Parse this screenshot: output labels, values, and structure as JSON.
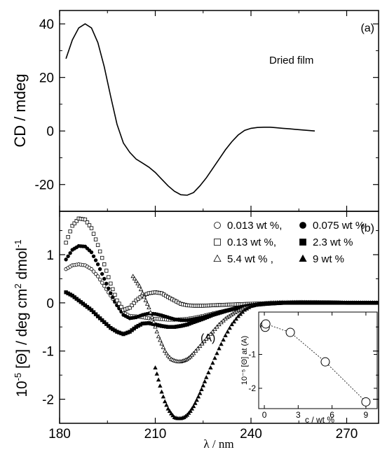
{
  "chart_data": [
    {
      "panel": "(a)",
      "type": "line",
      "annotation": "Dried film",
      "xlabel": "",
      "ylabel": "CD / mdeg",
      "xlim": [
        180,
        280
      ],
      "ylim": [
        -30,
        45
      ],
      "yticks": [
        -20,
        0,
        20,
        40
      ],
      "ytick_labels": [
        "-20",
        "0",
        "20",
        "40"
      ],
      "series": [
        {
          "x": [
            182,
            184,
            186,
            188,
            190,
            192,
            194,
            196,
            198,
            200,
            202,
            204,
            206,
            208,
            210,
            212,
            214,
            216,
            218,
            220,
            222,
            224,
            226,
            228,
            230,
            232,
            234,
            236,
            238,
            240,
            242,
            244,
            246,
            248,
            250,
            252,
            254,
            256,
            258,
            260
          ],
          "y": [
            27,
            34,
            38.5,
            40,
            38.5,
            33,
            24,
            13,
            2.5,
            -4.5,
            -8,
            -10.5,
            -12,
            -13.5,
            -15.5,
            -18,
            -20.5,
            -22.5,
            -23.8,
            -24,
            -23,
            -20.5,
            -17.5,
            -14,
            -10.5,
            -7,
            -4,
            -1.5,
            0.2,
            1,
            1.3,
            1.4,
            1.4,
            1.2,
            1,
            0.8,
            0.6,
            0.4,
            0.2,
            0
          ]
        }
      ]
    },
    {
      "panel": "(b)",
      "type": "scatter",
      "xlabel": "λ / nm",
      "ylabel_prefix": "10",
      "ylabel_exp1": "-5",
      "ylabel_mid": " [Θ] / deg cm",
      "ylabel_exp2": "2",
      "ylabel_mid2": " dmol",
      "ylabel_exp3": "-1",
      "xlim": [
        180,
        280
      ],
      "ylim": [
        -2.5,
        1.9
      ],
      "xticks": [
        180,
        210,
        240,
        270
      ],
      "xtick_labels": [
        "180",
        "210",
        "240",
        "270"
      ],
      "yticks": [
        -2,
        -1,
        0,
        1
      ],
      "ytick_labels": [
        "-2",
        "-1",
        "0",
        "1"
      ],
      "annotation": "(A)",
      "series": [
        {
          "name": "0.013 wt %,",
          "marker": "open-circle",
          "x": [
            182,
            184,
            186,
            188,
            190,
            192,
            194,
            196,
            198,
            200,
            202,
            204,
            206,
            208,
            210,
            212,
            214,
            216,
            218,
            220,
            222,
            225,
            228,
            232,
            236,
            240,
            245,
            250,
            255,
            260,
            265,
            270,
            275,
            280
          ],
          "y": [
            0.7,
            0.78,
            0.8,
            0.78,
            0.7,
            0.55,
            0.35,
            0.15,
            -0.05,
            -0.2,
            -0.27,
            -0.28,
            -0.3,
            -0.32,
            -0.33,
            -0.34,
            -0.35,
            -0.35,
            -0.34,
            -0.33,
            -0.31,
            -0.27,
            -0.22,
            -0.16,
            -0.1,
            -0.05,
            -0.02,
            0,
            0.01,
            0.01,
            0.01,
            0,
            0,
            0
          ]
        },
        {
          "name": "0.075 wt %",
          "marker": "filled-circle",
          "x": [
            182,
            184,
            186,
            188,
            190,
            192,
            194,
            196,
            198,
            200,
            202,
            204,
            206,
            208,
            210,
            212,
            214,
            216,
            218,
            220,
            222,
            225,
            228,
            232,
            236,
            240,
            245,
            250,
            255,
            260,
            265,
            270,
            275,
            280
          ],
          "y": [
            0.9,
            1.1,
            1.18,
            1.17,
            1.05,
            0.8,
            0.5,
            0.2,
            -0.05,
            -0.25,
            -0.32,
            -0.3,
            -0.25,
            -0.22,
            -0.23,
            -0.26,
            -0.3,
            -0.34,
            -0.36,
            -0.36,
            -0.34,
            -0.3,
            -0.24,
            -0.17,
            -0.1,
            -0.05,
            -0.02,
            0,
            0.01,
            0.01,
            0.01,
            0,
            0,
            0
          ]
        },
        {
          "name": "0.13 wt %,",
          "marker": "open-square",
          "x": [
            182,
            184,
            186,
            188,
            190,
            192,
            194,
            196,
            198,
            200,
            202,
            204,
            206,
            208,
            210,
            212,
            214,
            216,
            218,
            220,
            222,
            225,
            228,
            232,
            236,
            240,
            245,
            250,
            255,
            260,
            265,
            270,
            275,
            280
          ],
          "y": [
            1.25,
            1.6,
            1.75,
            1.73,
            1.55,
            1.2,
            0.8,
            0.4,
            0.05,
            -0.15,
            -0.1,
            0.05,
            0.15,
            0.2,
            0.22,
            0.2,
            0.12,
            0.05,
            -0.02,
            -0.05,
            -0.06,
            -0.06,
            -0.05,
            -0.04,
            -0.03,
            -0.02,
            -0.01,
            0,
            0,
            0,
            0,
            0,
            0,
            0
          ]
        },
        {
          "name": "2.3 wt %",
          "marker": "filled-square",
          "x": [
            182,
            184,
            186,
            188,
            190,
            192,
            194,
            196,
            198,
            200,
            202,
            204,
            206,
            208,
            210,
            212,
            214,
            216,
            218,
            220,
            222,
            225,
            228,
            232,
            236,
            240,
            245,
            250,
            255,
            260,
            265,
            270,
            275,
            280
          ],
          "y": [
            0.22,
            0.15,
            0.05,
            -0.05,
            -0.15,
            -0.28,
            -0.4,
            -0.52,
            -0.6,
            -0.65,
            -0.6,
            -0.5,
            -0.43,
            -0.42,
            -0.45,
            -0.48,
            -0.5,
            -0.5,
            -0.48,
            -0.45,
            -0.4,
            -0.33,
            -0.25,
            -0.17,
            -0.1,
            -0.05,
            -0.02,
            0,
            0.01,
            0.01,
            0.01,
            0,
            0,
            0
          ]
        },
        {
          "name": "5.4 wt %    ,",
          "marker": "open-triangle",
          "x": [
            203,
            204,
            205,
            206,
            207,
            208,
            209,
            210,
            211,
            212,
            213,
            214,
            215,
            216,
            217,
            218,
            219,
            220,
            221,
            222,
            224,
            226,
            228,
            230,
            232,
            235,
            238,
            242,
            246,
            250,
            255,
            260,
            265,
            270,
            275,
            280
          ],
          "y": [
            0.55,
            0.45,
            0.35,
            0.2,
            0.05,
            -0.1,
            -0.3,
            -0.5,
            -0.7,
            -0.85,
            -1.0,
            -1.1,
            -1.17,
            -1.2,
            -1.22,
            -1.22,
            -1.2,
            -1.17,
            -1.12,
            -1.05,
            -0.9,
            -0.75,
            -0.6,
            -0.45,
            -0.33,
            -0.2,
            -0.1,
            -0.04,
            -0.01,
            0,
            0.01,
            0.01,
            0,
            0,
            0,
            0
          ]
        },
        {
          "name": "9 wt %",
          "marker": "filled-triangle",
          "x": [
            210,
            211,
            212,
            213,
            214,
            215,
            216,
            217,
            218,
            219,
            220,
            221,
            222,
            223,
            224,
            225,
            226,
            228,
            230,
            232,
            234,
            236,
            238,
            240,
            243,
            246,
            250,
            255,
            260,
            265,
            270,
            275,
            280
          ],
          "y": [
            -1.35,
            -1.6,
            -1.85,
            -2.05,
            -2.2,
            -2.3,
            -2.38,
            -2.4,
            -2.4,
            -2.38,
            -2.33,
            -2.25,
            -2.15,
            -2.02,
            -1.88,
            -1.72,
            -1.55,
            -1.25,
            -0.95,
            -0.68,
            -0.45,
            -0.28,
            -0.15,
            -0.07,
            -0.02,
            0,
            0.01,
            0.01,
            0,
            0,
            0,
            0,
            0
          ]
        }
      ]
    },
    {
      "panel": "inset",
      "type": "line",
      "xlabel": "c / wt %",
      "ylabel": "10⁻⁵ [Θ] at (A)",
      "xlim": [
        -0.5,
        10
      ],
      "ylim": [
        -2.6,
        0.25
      ],
      "xticks": [
        0,
        3,
        6,
        9
      ],
      "xtick_labels": [
        "0",
        "3",
        "6",
        "9"
      ],
      "yticks": [
        -2,
        -1
      ],
      "ytick_labels": [
        "-2",
        "-1"
      ],
      "series": [
        {
          "x": [
            0.013,
            0.075,
            0.13,
            2.3,
            5.4,
            9
          ],
          "y": [
            -0.15,
            -0.2,
            -0.1,
            -0.35,
            -1.22,
            -2.4
          ]
        }
      ]
    }
  ]
}
